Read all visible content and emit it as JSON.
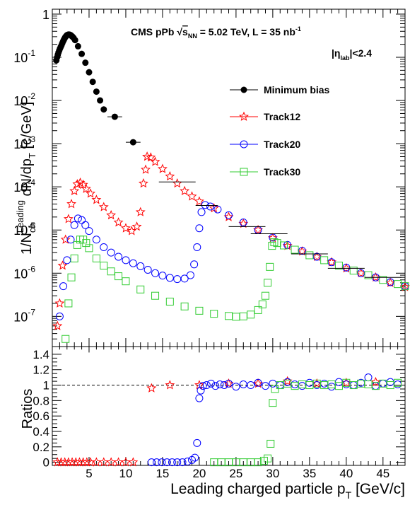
{
  "chart_data": {
    "type": "scatter",
    "xlabel": "Leading charged particle p",
    "xlabel_sub": "T",
    "xlabel_unit": " [GeV/c]",
    "xlim": [
      0,
      48
    ],
    "x_ticks": [
      5,
      10,
      15,
      20,
      25,
      30,
      35,
      40,
      45
    ],
    "annotation": {
      "prefix": "CMS pPb ",
      "sqrt_s": "s",
      "sqrt_s_sub": "NN",
      "energy": " = 5.02 TeV, L = 35 nb",
      "lumi_exp": "-1",
      "eta_pre": "|η",
      "eta_sub": "lab",
      "eta_post": "|<2.4"
    },
    "legend": {
      "placement": "top-right",
      "entries": [
        {
          "label": "Minimum bias",
          "marker": "filled-circle",
          "color": "#000000"
        },
        {
          "label": "Track12",
          "marker": "open-star",
          "color": "#ff0000"
        },
        {
          "label": "Track20",
          "marker": "open-circle",
          "color": "#0000ff"
        },
        {
          "label": "Track30",
          "marker": "open-square",
          "color": "#33cc33"
        }
      ]
    },
    "top_panel": {
      "yscale": "log",
      "ylim": [
        2e-08,
        1.3
      ],
      "y_ticks": [
        {
          "value": 1,
          "label": "1"
        },
        {
          "value": 0.1,
          "label": "10",
          "exp": "-1"
        },
        {
          "value": 0.01,
          "label": "10",
          "exp": "-2"
        },
        {
          "value": 0.001,
          "label": "10",
          "exp": "-3"
        },
        {
          "value": 0.0001,
          "label": "10",
          "exp": "-4"
        },
        {
          "value": 1e-05,
          "label": "10",
          "exp": "-5"
        },
        {
          "value": 1e-06,
          "label": "10",
          "exp": "-6"
        },
        {
          "value": 1e-07,
          "label": "10",
          "exp": "-7"
        }
      ],
      "ylabel": {
        "pre": "1/N",
        "sub": "ch",
        "sup": "Leading",
        "mid": " dN/dp",
        "sub2": "T",
        "post": " [c/GeV]"
      },
      "series": [
        {
          "name": "Minimum bias",
          "color": "#000000",
          "marker": "filled-circle",
          "x": [
            0.55,
            0.65,
            0.75,
            0.85,
            0.95,
            1.05,
            1.15,
            1.25,
            1.35,
            1.45,
            1.55,
            1.65,
            1.75,
            1.85,
            1.95,
            2.05,
            2.15,
            2.25,
            2.35,
            2.45,
            2.55,
            2.65,
            2.75,
            2.9,
            3.1,
            3.5,
            4.0,
            4.5,
            5.0,
            5.5,
            6.0,
            6.5,
            7.0,
            8.5,
            11.0
          ],
          "y": [
            0.085,
            0.1,
            0.115,
            0.13,
            0.145,
            0.16,
            0.175,
            0.19,
            0.21,
            0.23,
            0.25,
            0.27,
            0.29,
            0.305,
            0.32,
            0.33,
            0.335,
            0.338,
            0.335,
            0.33,
            0.32,
            0.31,
            0.3,
            0.28,
            0.25,
            0.18,
            0.12,
            0.075,
            0.045,
            0.027,
            0.016,
            0.01,
            0.0062,
            0.0042,
            0.00108
          ],
          "xerr": [
            0,
            0,
            0,
            0,
            0,
            0,
            0,
            0,
            0,
            0,
            0,
            0,
            0,
            0,
            0,
            0,
            0,
            0,
            0,
            0,
            0,
            0,
            0,
            0,
            0,
            0,
            0,
            0,
            0,
            0,
            0,
            0,
            0,
            1.0,
            1.0
          ]
        },
        {
          "name": "Minimum bias (tail)",
          "color": "#000000",
          "marker": "hbar",
          "x": [
            17,
            21,
            26.5,
            29.5,
            35,
            40,
            45
          ],
          "y": [
            0.00013,
            3.7e-05,
            1.2e-05,
            8.2e-06,
            2.8e-06,
            1.3e-06,
            8e-07
          ],
          "xerr": [
            2.5,
            1.5,
            2.5,
            2.5,
            2.5,
            2.5,
            2.5
          ]
        },
        {
          "name": "Track12",
          "color": "#ff0000",
          "marker": "open-star",
          "x": [
            0.7,
            1.0,
            1.4,
            1.8,
            2.2,
            2.6,
            3.0,
            3.4,
            3.8,
            4.2,
            4.6,
            5.2,
            6.0,
            7.0,
            8.0,
            9.0,
            10.0,
            10.8,
            11.5,
            12.0,
            12.4,
            12.7,
            12.9,
            13.4,
            14.0,
            15.0,
            16.0,
            17.0,
            18.0,
            19.0,
            20.0,
            22.0,
            24.0,
            26.0,
            28.0,
            30.0,
            32.0,
            34.0,
            36.0,
            38.0,
            40.0,
            42.0,
            44.0,
            46.0,
            48.0
          ],
          "y": [
            6e-08,
            2e-07,
            1.5e-06,
            6e-06,
            1.8e-05,
            4e-05,
            8e-05,
            0.000115,
            0.000125,
            0.000112,
            9e-05,
            7e-05,
            5e-05,
            3.4e-05,
            2.2e-05,
            1.5e-05,
            1.1e-05,
            9.5e-06,
            1.2e-05,
            2.6e-05,
            0.00012,
            0.00025,
            0.0005,
            0.00048,
            0.00038,
            0.00026,
            0.000175,
            0.00012,
            8e-05,
            6e-05,
            4.6e-05,
            3.2e-05,
            2e-05,
            1.4e-05,
            1e-05,
            6.5e-06,
            4.3e-06,
            3.2e-06,
            2.4e-06,
            1.8e-06,
            1.3e-06,
            1e-06,
            8e-07,
            6e-07,
            4.8e-07
          ]
        },
        {
          "name": "Track20",
          "color": "#0000ff",
          "marker": "open-circle",
          "x": [
            1.0,
            1.5,
            2.0,
            2.5,
            3.0,
            3.5,
            4.0,
            4.5,
            5.0,
            6.0,
            7.0,
            8.0,
            9.0,
            10.0,
            11.0,
            12.0,
            13.0,
            14.0,
            15.0,
            16.0,
            17.0,
            18.0,
            18.8,
            19.3,
            19.7,
            20.0,
            20.3,
            20.8,
            21.5,
            22.5,
            24.0,
            26.0,
            28.0,
            30.0,
            32.0,
            34.0,
            36.0,
            38.0,
            40.0,
            42.0,
            44.0,
            46.0,
            48.0
          ],
          "y": [
            1e-07,
            5e-07,
            2e-06,
            6e-06,
            1.3e-05,
            1.85e-05,
            1.7e-05,
            1.3e-05,
            9.5e-06,
            6e-06,
            4e-06,
            3e-06,
            2.4e-06,
            2e-06,
            1.7e-06,
            1.45e-06,
            1.2e-06,
            1e-06,
            8.8e-07,
            7.8e-07,
            7.3e-07,
            7.5e-07,
            9e-07,
            1.6e-06,
            4e-06,
            1.1e-05,
            2.6e-05,
            3.8e-05,
            3.5e-05,
            3e-05,
            2.2e-05,
            1.5e-05,
            1e-05,
            6.7e-06,
            4.5e-06,
            3.3e-06,
            2.4e-06,
            1.8e-06,
            1.35e-06,
            1e-06,
            8e-07,
            6.2e-07,
            5e-07
          ]
        },
        {
          "name": "Track30",
          "color": "#33cc33",
          "marker": "open-square",
          "x": [
            1.8,
            2.2,
            2.6,
            3.0,
            3.4,
            3.8,
            4.2,
            4.6,
            5.0,
            6.0,
            7.0,
            8.0,
            9.0,
            10.0,
            12.0,
            14.0,
            16.0,
            18.0,
            20.0,
            22.0,
            24.0,
            25.0,
            26.0,
            27.0,
            28.0,
            28.6,
            29.0,
            29.3,
            29.6,
            29.9,
            30.2,
            30.6,
            31.5,
            33.0,
            35.0,
            37.0,
            39.0,
            41.0,
            43.0,
            45.0,
            47.0,
            48.0
          ],
          "y": [
            3e-08,
            2e-07,
            8e-07,
            2.2e-06,
            4.5e-06,
            6e-06,
            6e-06,
            5e-06,
            3.8e-06,
            2.2e-06,
            1.5e-06,
            1.1e-06,
            8.5e-07,
            6.5e-07,
            4.2e-07,
            3e-07,
            2.2e-07,
            1.7e-07,
            1.35e-07,
            1.15e-07,
            1.02e-07,
            9.8e-08,
            1e-07,
            1.1e-07,
            1.4e-07,
            1.9e-07,
            3e-07,
            6e-07,
            1.4e-06,
            4.3e-06,
            5.2e-06,
            5e-06,
            4.4e-06,
            3.5e-06,
            2.6e-06,
            2e-06,
            1.5e-06,
            1.15e-06,
            9e-07,
            7e-07,
            5.6e-07,
            5e-07
          ]
        }
      ]
    },
    "bottom_panel": {
      "ylabel": "Ratios",
      "ylim": [
        -0.04,
        1.5
      ],
      "y_ticks": [
        {
          "value": 0,
          "label": "0"
        },
        {
          "value": 0.2,
          "label": "0.2"
        },
        {
          "value": 0.4,
          "label": "0.4"
        },
        {
          "value": 0.6,
          "label": "0.6"
        },
        {
          "value": 0.8,
          "label": "0.8"
        },
        {
          "value": 1,
          "label": "1"
        },
        {
          "value": 1.2,
          "label": "1.2"
        },
        {
          "value": 1.4,
          "label": "1.4"
        }
      ],
      "reference_line": 1,
      "series": [
        {
          "name": "Track12",
          "color": "#ff0000",
          "marker": "open-star",
          "x": [
            0.7,
            1.2,
            1.7,
            2.2,
            2.7,
            3.2,
            3.7,
            4.2,
            4.7,
            5.2,
            6.0,
            7.0,
            8.0,
            9.0,
            10.0,
            11.0,
            13.5,
            16.0,
            20.0,
            24.0,
            28.0,
            32.0,
            36.0,
            40.0,
            44.0
          ],
          "y": [
            0,
            0,
            0,
            0,
            0,
            0,
            0,
            0,
            0,
            0,
            0,
            0,
            0,
            0,
            0,
            0,
            0.96,
            1.0,
            1.0,
            1.02,
            1.02,
            1.05,
            1.02,
            1.03,
            1.04
          ]
        },
        {
          "name": "Track20",
          "color": "#0000ff",
          "marker": "open-circle",
          "x": [
            13.5,
            14.2,
            14.9,
            15.6,
            16.3,
            17.0,
            17.7,
            18.4,
            19.0,
            19.4,
            19.7,
            20.0,
            20.2,
            20.5,
            21.0,
            21.6,
            22.2,
            22.8,
            23.4,
            24.0,
            25.0,
            26.0,
            27.0,
            28.0,
            29.0,
            30.0,
            31.0,
            32.0,
            33.0,
            34.0,
            35.0,
            36.0,
            37.0,
            38.0,
            39.0,
            40.0,
            41.0,
            42.0,
            43.0,
            44.0,
            45.0,
            46.0,
            47.0
          ],
          "y": [
            0,
            0,
            0,
            0,
            0,
            0,
            0,
            0.01,
            0.03,
            0.06,
            0.25,
            0.83,
            0.93,
            0.99,
            1.0,
            1.02,
            0.99,
            1.01,
            1.0,
            1.02,
            0.98,
            1.01,
            1.0,
            1.03,
            0.99,
            1.02,
            1.0,
            1.04,
            1.01,
            0.99,
            1.03,
            1.0,
            1.02,
            0.98,
            1.04,
            1.01,
            1.0,
            1.03,
            1.1,
            0.99,
            1.02,
            1.04,
            1.01
          ]
        },
        {
          "name": "Track30",
          "color": "#33cc33",
          "marker": "open-square",
          "x": [
            22.0,
            23.0,
            24.0,
            25.0,
            26.0,
            27.0,
            28.0,
            28.8,
            29.3,
            29.7,
            30.0,
            30.3,
            31.0,
            32.0,
            33.0,
            34.0,
            35.0,
            36.0,
            37.0,
            38.0,
            39.0,
            40.0,
            41.0,
            42.0,
            43.0,
            44.0,
            45.0,
            46.0,
            47.0
          ],
          "y": [
            0,
            0,
            0,
            0,
            0,
            0,
            0,
            0.02,
            0.05,
            0.24,
            0.77,
            0.95,
            1.0,
            1.02,
            0.99,
            1.01,
            1.0,
            1.02,
            1.0,
            1.01,
            0.99,
            1.03,
            1.0,
            1.02,
            1.01,
            0.99,
            1.02,
            1.0,
            1.03
          ]
        }
      ]
    }
  }
}
